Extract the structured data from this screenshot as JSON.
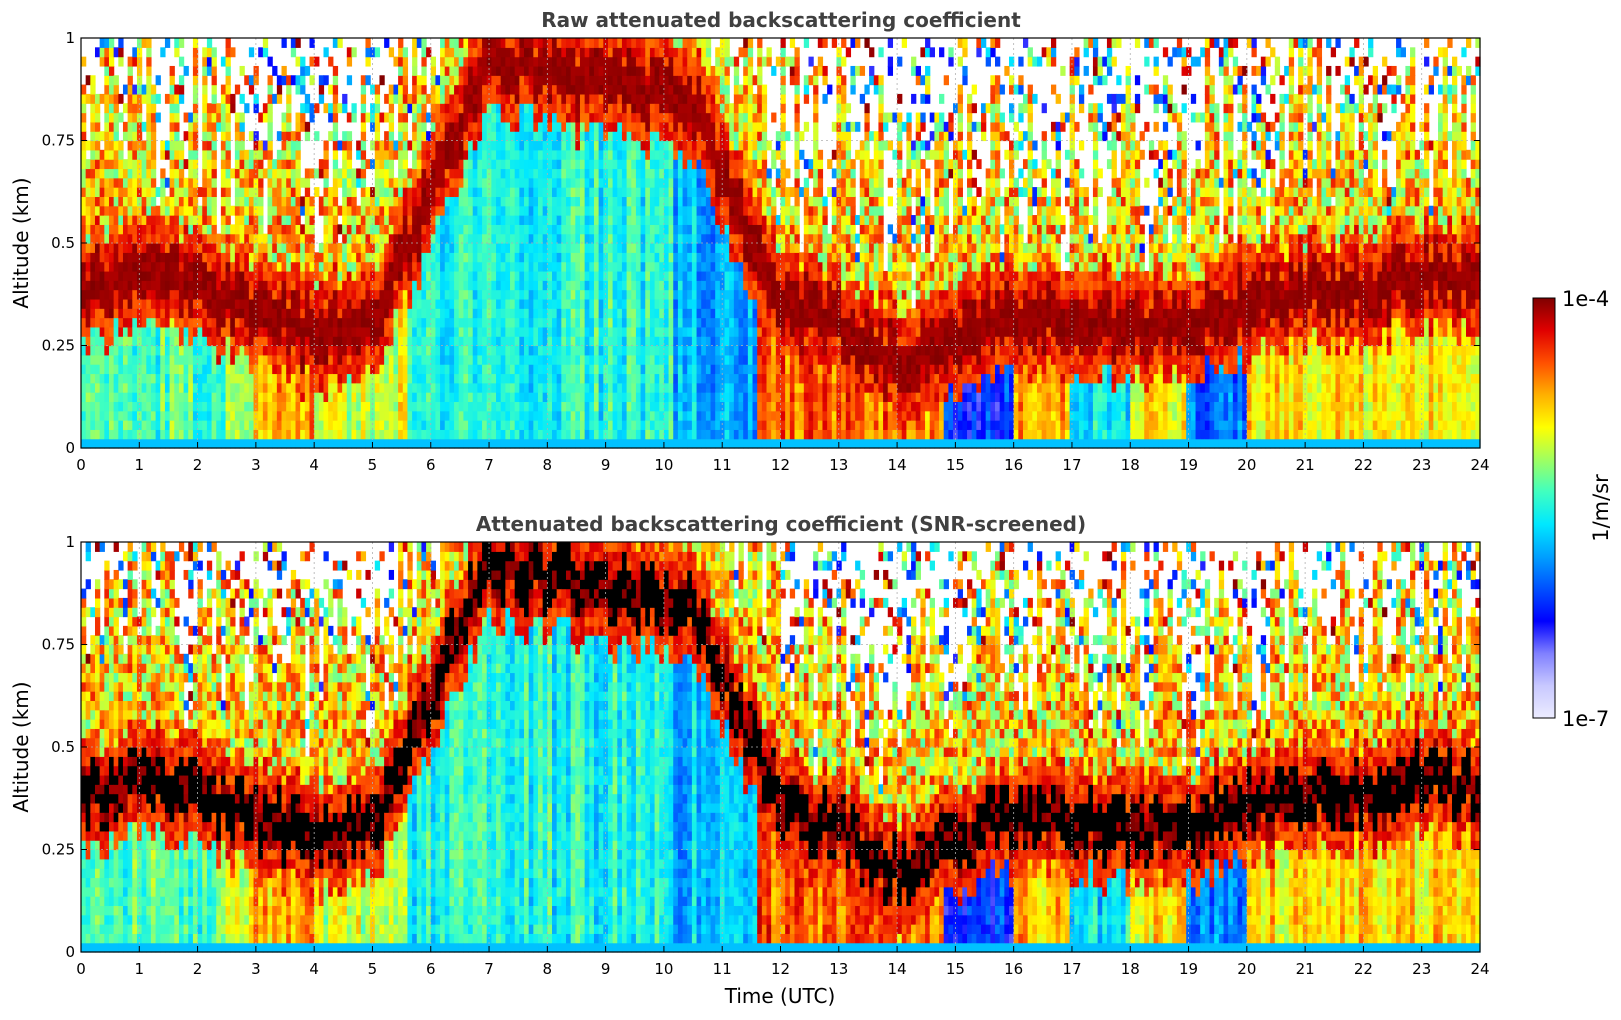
{
  "chart_data": [
    {
      "type": "heatmap",
      "title": "Raw attenuated backscattering coefficient",
      "xlabel": "",
      "ylabel": "Altitude (km)",
      "xlim": [
        0,
        24
      ],
      "ylim": [
        0,
        1
      ],
      "xticks": [
        "0",
        "1",
        "2",
        "3",
        "4",
        "5",
        "6",
        "7",
        "8",
        "9",
        "10",
        "11",
        "12",
        "13",
        "14",
        "15",
        "16",
        "17",
        "18",
        "19",
        "20",
        "21",
        "22",
        "23",
        "24"
      ],
      "yticks": [
        "0",
        "0.25",
        "0.5",
        "0.75",
        "1"
      ],
      "grid": true,
      "screened": false,
      "colormap": "jet",
      "color_scale": "log",
      "peak_layer_altitude_km": [
        {
          "time": 0,
          "alt": 0.38
        },
        {
          "time": 1,
          "alt": 0.42
        },
        {
          "time": 2,
          "alt": 0.4
        },
        {
          "time": 3,
          "alt": 0.33
        },
        {
          "time": 4,
          "alt": 0.28
        },
        {
          "time": 5,
          "alt": 0.3
        },
        {
          "time": 7,
          "alt": 0.95
        },
        {
          "time": 8.5,
          "alt": 0.9
        },
        {
          "time": 10.5,
          "alt": 0.85
        },
        {
          "time": 12,
          "alt": 0.35
        },
        {
          "time": 13,
          "alt": 0.3
        },
        {
          "time": 14,
          "alt": 0.2
        },
        {
          "time": 15,
          "alt": 0.28
        },
        {
          "time": 16,
          "alt": 0.33
        },
        {
          "time": 17,
          "alt": 0.32
        },
        {
          "time": 18,
          "alt": 0.3
        },
        {
          "time": 19,
          "alt": 0.3
        },
        {
          "time": 20,
          "alt": 0.36
        },
        {
          "time": 21,
          "alt": 0.38
        },
        {
          "time": 22,
          "alt": 0.38
        },
        {
          "time": 23,
          "alt": 0.43
        },
        {
          "time": 24,
          "alt": 0.4
        }
      ]
    },
    {
      "type": "heatmap",
      "title": "Attenuated backscattering coefficient (SNR-screened)",
      "xlabel": "Time (UTC)",
      "ylabel": "Altitude (km)",
      "xlim": [
        0,
        24
      ],
      "ylim": [
        0,
        1
      ],
      "xticks": [
        "0",
        "1",
        "2",
        "3",
        "4",
        "5",
        "6",
        "7",
        "8",
        "9",
        "10",
        "11",
        "12",
        "13",
        "14",
        "15",
        "16",
        "17",
        "18",
        "19",
        "20",
        "21",
        "22",
        "23",
        "24"
      ],
      "yticks": [
        "0",
        "0.25",
        "0.5",
        "0.75",
        "1"
      ],
      "grid": true,
      "screened": true,
      "colormap": "jet",
      "color_scale": "log"
    }
  ],
  "colorbar": {
    "max_label": "1e-4",
    "min_label": "1e-7",
    "unit_label": "1/m/sr",
    "colors": [
      "#ececff",
      "#c8c8ff",
      "#8080ff",
      "#0000ff",
      "#0050ff",
      "#00a0ff",
      "#00e8ff",
      "#40ffc0",
      "#a0ff60",
      "#ffff00",
      "#ffb000",
      "#ff5000",
      "#e00000",
      "#800000"
    ]
  }
}
